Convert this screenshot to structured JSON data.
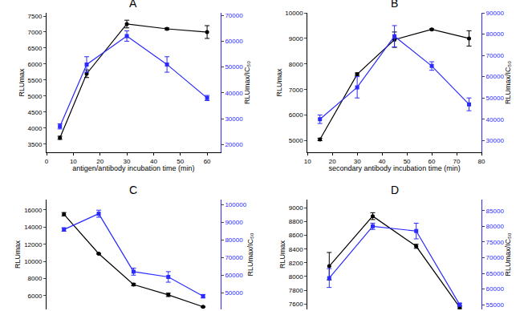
{
  "chart_data": [
    {
      "type": "line",
      "title": "A",
      "xlabel": "antigen/antibody incubation time (min)",
      "x": [
        5,
        15,
        30,
        45,
        60
      ],
      "xlim": [
        0,
        65
      ],
      "xticks": [
        0,
        10,
        20,
        30,
        40,
        50,
        60
      ],
      "ylim": [
        3250,
        7600
      ],
      "yticks": [
        3500,
        4000,
        4500,
        5000,
        5500,
        6000,
        6500,
        7000,
        7500
      ],
      "y2lim": [
        17000,
        71000
      ],
      "y2ticks": [
        20000,
        30000,
        40000,
        50000,
        60000,
        70000
      ],
      "series": [
        {
          "name": "RLUmax",
          "color": "#000000",
          "marker": "circle",
          "values": [
            3700,
            5700,
            7250,
            7100,
            7000
          ],
          "errors": [
            50,
            120,
            120,
            30,
            200
          ]
        },
        {
          "name": "RLUmax/IC₅₀",
          "color": "#2b2bff",
          "marker": "square",
          "axis": "y2",
          "values": [
            27000,
            51000,
            62000,
            51000,
            38000
          ],
          "errors": [
            1000,
            3000,
            2000,
            3000,
            1000
          ]
        }
      ]
    },
    {
      "type": "line",
      "title": "B",
      "xlabel": "secondary antibody incubation time (min)",
      "x": [
        15,
        30,
        45,
        60,
        75
      ],
      "xlim": [
        10,
        80
      ],
      "xticks": [
        10,
        20,
        30,
        40,
        50,
        60,
        70,
        80
      ],
      "ylim": [
        4550,
        10000
      ],
      "yticks": [
        5000,
        6000,
        7000,
        8000,
        9000,
        10000
      ],
      "y2lim": [
        24500,
        90000
      ],
      "y2ticks": [
        30000,
        40000,
        50000,
        60000,
        70000,
        80000,
        90000
      ],
      "series": [
        {
          "name": "RLUmax",
          "color": "#000000",
          "marker": "circle",
          "values": [
            5050,
            7600,
            8950,
            9350,
            9000
          ],
          "errors": [
            50,
            50,
            300,
            30,
            300
          ]
        },
        {
          "name": "RLUmax/IC₅₀",
          "color": "#2b2bff",
          "marker": "square",
          "axis": "y2",
          "values": [
            40000,
            55000,
            79000,
            65000,
            47000
          ],
          "errors": [
            2000,
            5000,
            5000,
            2000,
            3000
          ]
        }
      ]
    },
    {
      "type": "line",
      "title": "C",
      "categories": [
        null,
        null,
        null,
        null,
        null
      ],
      "ylim": [
        4400,
        17200
      ],
      "yticks": [
        6000,
        8000,
        10000,
        12000,
        14000,
        16000
      ],
      "y2lim": [
        40500,
        103000
      ],
      "y2ticks": [
        50000,
        60000,
        70000,
        80000,
        90000,
        100000
      ],
      "series": [
        {
          "name": "RLUmax",
          "color": "#000000",
          "marker": "circle",
          "values": [
            15500,
            10900,
            7300,
            6100,
            4700
          ],
          "errors": [
            200,
            50,
            150,
            200,
            50
          ]
        },
        {
          "name": "RLUmax/IC₅₀",
          "color": "#2b2bff",
          "marker": "square",
          "axis": "y2",
          "values": [
            86000,
            95000,
            62000,
            59000,
            48000
          ],
          "errors": [
            1000,
            2000,
            2000,
            3000,
            1000
          ]
        }
      ]
    },
    {
      "type": "line",
      "title": "D",
      "categories": [
        null,
        null,
        null,
        null
      ],
      "ylim": [
        7520,
        9120
      ],
      "yticks": [
        7600,
        7800,
        8000,
        8200,
        8400,
        8600,
        8800,
        9000
      ],
      "y2lim": [
        53500,
        88500
      ],
      "y2ticks": [
        55000,
        60000,
        65000,
        70000,
        75000,
        80000,
        85000
      ],
      "series": [
        {
          "name": "RLUmax",
          "color": "#000000",
          "marker": "circle",
          "values": [
            8150,
            8880,
            8440,
            7550
          ],
          "errors": [
            200,
            50,
            30,
            20
          ]
        },
        {
          "name": "RLUmax/IC₅₀",
          "color": "#2b2bff",
          "marker": "square",
          "axis": "y2",
          "values": [
            63500,
            80000,
            78500,
            55000
          ],
          "errors": [
            3000,
            1000,
            2500,
            500
          ]
        }
      ]
    }
  ]
}
